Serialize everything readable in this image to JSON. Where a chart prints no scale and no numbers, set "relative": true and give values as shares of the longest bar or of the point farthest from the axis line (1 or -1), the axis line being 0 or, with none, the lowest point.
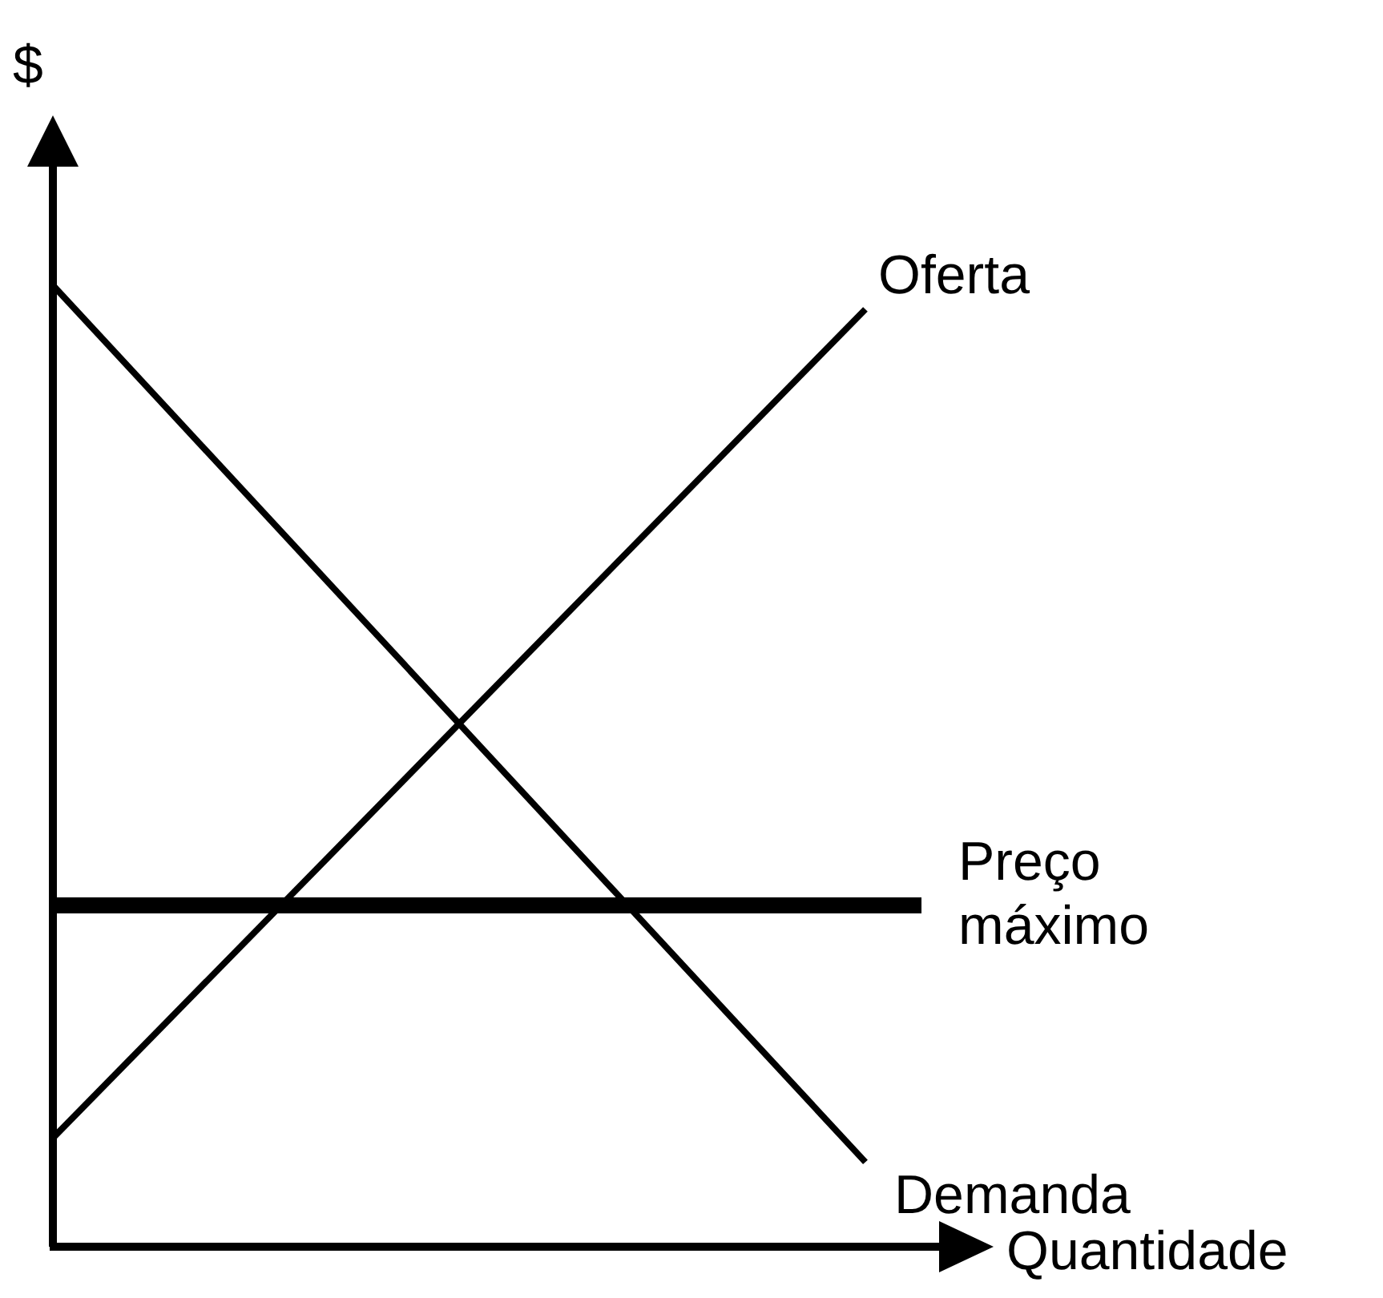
{
  "chart_data": {
    "type": "line",
    "relative": true,
    "xlabel": "Quantidade",
    "ylabel": "$",
    "categories": [
      null,
      null
    ],
    "series": [
      {
        "name": "Demanda",
        "color": "#000000",
        "values": [
          1,
          0.088
        ]
      },
      {
        "name": "Oferta",
        "color": "#000000",
        "values": [
          0.113,
          0.975
        ]
      }
    ],
    "ref_lines": [
      {
        "axis": "y",
        "value": 0.355,
        "label": "Preço máximo",
        "color": "#000000"
      }
    ],
    "marker": "none"
  }
}
